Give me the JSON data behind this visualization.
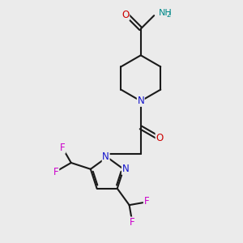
{
  "background_color": "#ebebeb",
  "bond_color": "#1a1a1a",
  "nitrogen_color": "#1414cc",
  "oxygen_color": "#cc0000",
  "fluorine_color": "#cc00cc",
  "hydrogen_color": "#008888",
  "figsize": [
    3.0,
    3.0
  ],
  "dpi": 100,
  "xlim": [
    0,
    10
  ],
  "ylim": [
    0,
    10
  ]
}
